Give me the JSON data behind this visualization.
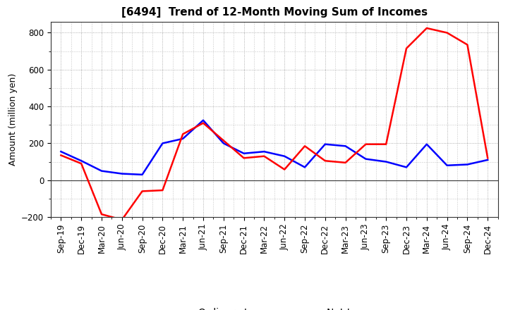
{
  "title": "[6494]  Trend of 12-Month Moving Sum of Incomes",
  "ylabel": "Amount (million yen)",
  "x_labels": [
    "Sep-19",
    "Dec-19",
    "Mar-20",
    "Jun-20",
    "Sep-20",
    "Dec-20",
    "Mar-21",
    "Jun-21",
    "Sep-21",
    "Dec-21",
    "Mar-22",
    "Jun-22",
    "Sep-22",
    "Dec-22",
    "Mar-23",
    "Jun-23",
    "Sep-23",
    "Dec-23",
    "Mar-24",
    "Jun-24",
    "Sep-24",
    "Dec-24"
  ],
  "ordinary_income": [
    155,
    105,
    50,
    35,
    30,
    200,
    225,
    325,
    200,
    145,
    155,
    130,
    70,
    195,
    185,
    115,
    100,
    70,
    195,
    80,
    85,
    110
  ],
  "net_income": [
    135,
    90,
    -185,
    -215,
    -60,
    -55,
    250,
    310,
    215,
    120,
    130,
    58,
    185,
    105,
    95,
    195,
    195,
    715,
    825,
    800,
    735,
    120
  ],
  "ordinary_color": "#0000ff",
  "net_color": "#ff0000",
  "background_color": "#ffffff",
  "grid_color": "#999999",
  "ylim": [
    -200,
    860
  ],
  "yticks": [
    -200,
    0,
    200,
    400,
    600,
    800
  ],
  "title_fontsize": 11,
  "axis_fontsize": 8.5,
  "ylabel_fontsize": 9,
  "legend_fontsize": 10,
  "line_width": 1.8
}
